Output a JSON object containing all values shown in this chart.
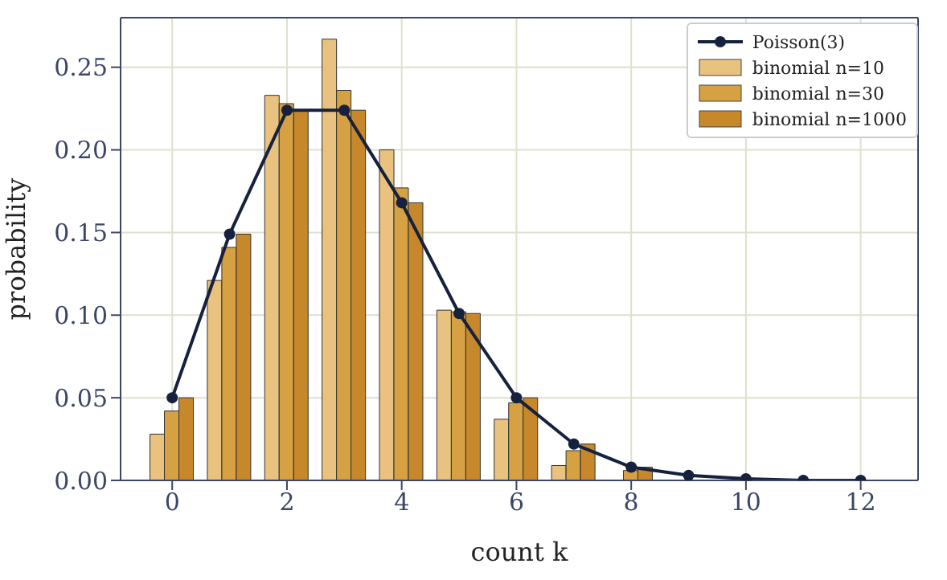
{
  "chart_data": {
    "type": "bar",
    "xlabel": "count k",
    "ylabel": "probability",
    "x": [
      0,
      1,
      2,
      3,
      4,
      5,
      6,
      7,
      8,
      9,
      10,
      11,
      12
    ],
    "series": [
      {
        "name": "Poisson(3)",
        "type": "line",
        "color": "#16213e",
        "marker": "circle",
        "values": [
          0.05,
          0.149,
          0.224,
          0.224,
          0.168,
          0.101,
          0.05,
          0.022,
          0.008,
          0.003,
          0.001,
          0.0,
          0.0
        ]
      },
      {
        "name": "binomial n=10",
        "color": "#e8c27e",
        "values": [
          0.028,
          0.121,
          0.233,
          0.267,
          0.2,
          0.103,
          0.037,
          0.009,
          null,
          0.0,
          0.0,
          null,
          null
        ]
      },
      {
        "name": "binomial n=30",
        "color": "#d6a142",
        "values": [
          0.042,
          0.141,
          0.228,
          0.236,
          0.177,
          0.102,
          0.047,
          0.018,
          0.006,
          null,
          0.0,
          0.0,
          0.0
        ]
      },
      {
        "name": "binomial n=1000",
        "color": "#c6882a",
        "values": [
          0.05,
          0.149,
          0.224,
          0.224,
          0.168,
          0.101,
          0.05,
          0.022,
          0.008,
          null,
          0.001,
          0.0,
          0.0
        ]
      }
    ],
    "xlim": [
      -0.9,
      13
    ],
    "xticks": [
      0,
      2,
      4,
      6,
      8,
      10,
      12
    ],
    "ylim": [
      0,
      0.28
    ],
    "yticks": [
      {
        "value": 0,
        "label": "0.00"
      },
      {
        "value": 0.05,
        "label": "0.05"
      },
      {
        "value": 0.1,
        "label": "0.10"
      },
      {
        "value": 0.15,
        "label": "0.15"
      },
      {
        "value": 0.2,
        "label": "0.20"
      },
      {
        "value": 0.25,
        "label": "0.25"
      }
    ],
    "grid": true,
    "legend": "top right"
  }
}
